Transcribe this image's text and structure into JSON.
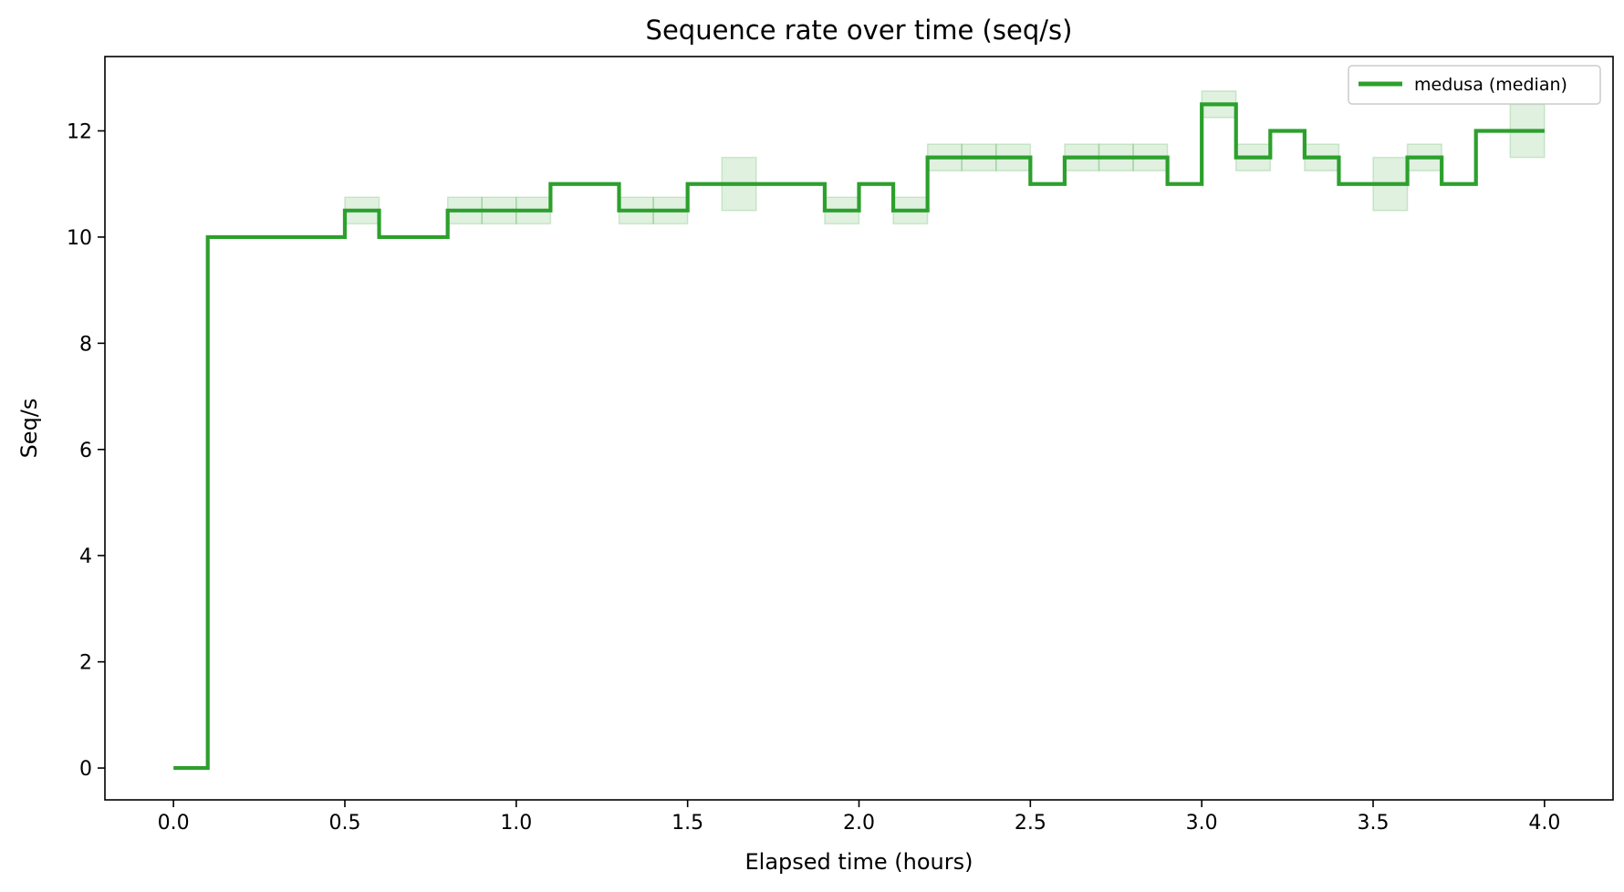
{
  "chart_data": {
    "type": "line",
    "title": "Sequence rate over time (seq/s)",
    "xlabel": "Elapsed time (hours)",
    "ylabel": "Seq/s",
    "xlim": [
      -0.2,
      4.2
    ],
    "ylim": [
      -0.6,
      13.4
    ],
    "xticks": [
      0.0,
      0.5,
      1.0,
      1.5,
      2.0,
      2.5,
      3.0,
      3.5,
      4.0
    ],
    "xtick_labels": [
      "0.0",
      "0.5",
      "1.0",
      "1.5",
      "2.0",
      "2.5",
      "3.0",
      "3.5",
      "4.0"
    ],
    "yticks": [
      0,
      2,
      4,
      6,
      8,
      10,
      12
    ],
    "ytick_labels": [
      "0",
      "2",
      "4",
      "6",
      "8",
      "10",
      "12"
    ],
    "grid": false,
    "legend_position": "top-right",
    "step": "post",
    "series": [
      {
        "name": "medusa (median)",
        "color": "#2ca02c",
        "band_color": "#2ca02c",
        "x": [
          0.0,
          0.1,
          0.2,
          0.3,
          0.4,
          0.5,
          0.6,
          0.7,
          0.8,
          0.9,
          1.0,
          1.1,
          1.2,
          1.3,
          1.4,
          1.5,
          1.6,
          1.7,
          1.8,
          1.9,
          2.0,
          2.1,
          2.2,
          2.3,
          2.4,
          2.5,
          2.6,
          2.7,
          2.8,
          2.9,
          3.0,
          3.1,
          3.2,
          3.3,
          3.4,
          3.5,
          3.6,
          3.7,
          3.8,
          3.9,
          4.0
        ],
        "y": [
          0,
          10,
          10,
          10,
          10,
          10.5,
          10,
          10,
          10.5,
          10.5,
          10.5,
          11,
          11,
          10.5,
          10.5,
          11,
          11,
          11,
          11,
          10.5,
          11,
          10.5,
          11.5,
          11.5,
          11.5,
          11,
          11.5,
          11.5,
          11.5,
          11,
          12.5,
          11.5,
          12,
          11.5,
          11,
          11,
          11.5,
          11,
          12,
          12,
          12
        ],
        "y_low": [
          0,
          10,
          10,
          10,
          10,
          10.25,
          10,
          10,
          10.25,
          10.25,
          10.25,
          11,
          11,
          10.25,
          10.25,
          11,
          10.5,
          11,
          11,
          10.25,
          11,
          10.25,
          11.25,
          11.25,
          11.25,
          11,
          11.25,
          11.25,
          11.25,
          11,
          12.25,
          11.25,
          12,
          11.25,
          11,
          10.5,
          11.25,
          11,
          12,
          11.5,
          11.5
        ],
        "y_high": [
          0,
          10,
          10,
          10,
          10,
          10.75,
          10,
          10,
          10.75,
          10.75,
          10.75,
          11,
          11,
          10.75,
          10.75,
          11,
          11.5,
          11,
          11,
          10.75,
          11,
          10.75,
          11.75,
          11.75,
          11.75,
          11,
          11.75,
          11.75,
          11.75,
          11,
          12.75,
          11.75,
          12,
          11.75,
          11,
          11.5,
          11.75,
          11,
          12,
          12.5,
          12.5
        ]
      }
    ]
  }
}
